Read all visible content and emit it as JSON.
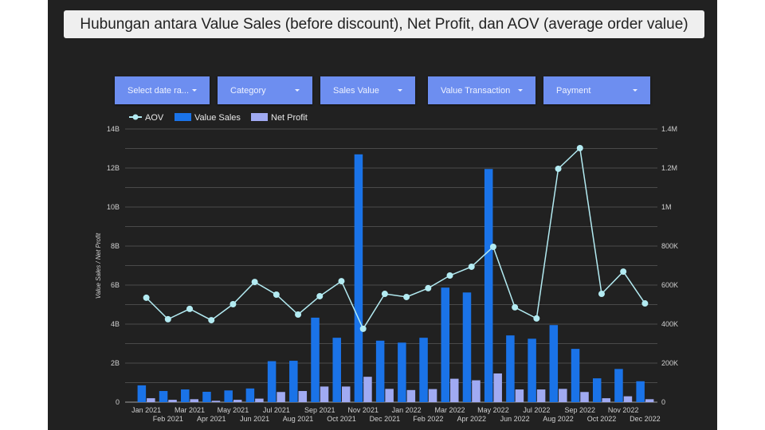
{
  "title": "Hubungan antara Value Sales (before discount), Net Profit, dan AOV (average order value)",
  "filters": [
    {
      "label": "Select date ra...",
      "icon": "caret-down-icon"
    },
    {
      "label": "Category",
      "icon": "caret-down-icon"
    },
    {
      "label": "Sales Value",
      "icon": "caret-down-icon"
    },
    {
      "label": "Value Transaction",
      "icon": "caret-down-icon"
    },
    {
      "label": "Payment",
      "icon": "caret-down-icon"
    }
  ],
  "colors": {
    "value_sales": "#1a73e8",
    "net_profit": "#a0aaf2",
    "aov": "#b3ebf2",
    "filter": "#6d8ef0"
  },
  "chart_data": {
    "type": "bar",
    "title": "",
    "ylabel": "Value Sales / Net Profit",
    "ylabel_right": "",
    "ylim": [
      0,
      14000000000
    ],
    "ylim_right": [
      0,
      1400000
    ],
    "yticks": [
      "0",
      "2B",
      "4B",
      "6B",
      "8B",
      "10B",
      "12B",
      "14B"
    ],
    "yticks_right": [
      "0",
      "200K",
      "400K",
      "600K",
      "800K",
      "1M",
      "1.2M",
      "1.4M"
    ],
    "grid": true,
    "legend_position": "top-left",
    "categories": [
      "Jan 2021",
      "Feb 2021",
      "Mar 2021",
      "Apr 2021",
      "May 2021",
      "Jun 2021",
      "Jul 2021",
      "Aug 2021",
      "Sep 2021",
      "Oct 2021",
      "Nov 2021",
      "Dec 2021",
      "Jan 2022",
      "Feb 2022",
      "Mar 2022",
      "Apr 2022",
      "May 2022",
      "Jun 2022",
      "Jul 2022",
      "Aug 2022",
      "Sep 2022",
      "Oct 2022",
      "Nov 2022",
      "Dec 2022"
    ],
    "series": [
      {
        "name": "Value Sales",
        "type": "bar",
        "axis": "left",
        "values": [
          860000000.0,
          570000000.0,
          650000000.0,
          530000000.0,
          600000000.0,
          700000000.0,
          2100000000.0,
          2120000000.0,
          4330000000.0,
          3300000000.0,
          12700000000.0,
          3150000000.0,
          3050000000.0,
          3300000000.0,
          5870000000.0,
          5620000000.0,
          11950000000.0,
          3420000000.0,
          3250000000.0,
          3950000000.0,
          2730000000.0,
          1220000000.0,
          1700000000.0,
          1070000000.0
        ]
      },
      {
        "name": "Net Profit",
        "type": "bar",
        "axis": "left",
        "values": [
          200000000.0,
          120000000.0,
          150000000.0,
          70000000.0,
          120000000.0,
          180000000.0,
          520000000.0,
          570000000.0,
          800000000.0,
          800000000.0,
          1300000000.0,
          680000000.0,
          620000000.0,
          670000000.0,
          1200000000.0,
          1120000000.0,
          1470000000.0,
          650000000.0,
          650000000.0,
          680000000.0,
          520000000.0,
          200000000.0,
          300000000.0,
          150000000.0
        ]
      },
      {
        "name": "AOV",
        "type": "line",
        "axis": "right",
        "values": [
          535000,
          425000,
          478000,
          420000,
          502000,
          616000,
          551000,
          449000,
          543000,
          620000,
          376000,
          555000,
          539000,
          584000,
          649000,
          694000,
          796000,
          486000,
          429000,
          1196000,
          1302000,
          555000,
          669000,
          506000
        ]
      }
    ]
  }
}
